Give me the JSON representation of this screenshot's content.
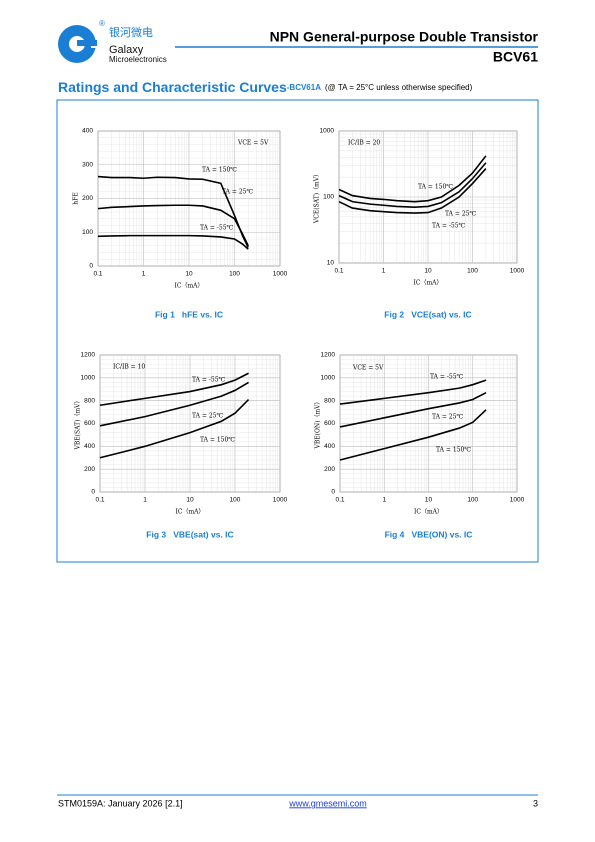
{
  "header": {
    "company_cn": "银河微电",
    "company_en1": "Galaxy",
    "company_en2": "Microelectronics",
    "title": "NPN General-purpose Double Transistor",
    "part": "BCV61"
  },
  "section": {
    "heading": "Ratings and Characteristic Curves",
    "suffix": "-BCV61A",
    "condition": "(@ TA = 25°C unless otherwise specified)"
  },
  "chart_data": [
    {
      "type": "line",
      "caption": "Fig 1   hFE vs. IC",
      "ylabel": "hFE",
      "xlabel": "IC（mA）",
      "annotation": "VCE = 5V",
      "color": "#000000",
      "log_x": true,
      "log_y": false,
      "grid": true,
      "xlim": [
        0.1,
        1000
      ],
      "xticks": [
        0.1,
        1,
        10,
        100,
        1000
      ],
      "ylim": [
        0,
        400
      ],
      "yticks": [
        0,
        100,
        200,
        300,
        400
      ],
      "x": [
        0.1,
        0.2,
        0.5,
        1,
        2,
        5,
        10,
        20,
        50,
        100,
        150,
        200
      ],
      "series": [
        {
          "name": "TA = 150℃",
          "values": [
            265,
            262,
            262,
            260,
            263,
            262,
            258,
            257,
            245,
            150,
            90,
            55
          ]
        },
        {
          "name": "TA = 25℃",
          "values": [
            170,
            174,
            176,
            178,
            179,
            180,
            180,
            178,
            165,
            140,
            95,
            60
          ]
        },
        {
          "name": "TA = -55℃",
          "values": [
            88,
            89,
            90,
            90,
            90,
            90,
            90,
            89,
            86,
            80,
            65,
            50
          ]
        }
      ]
    },
    {
      "type": "line",
      "caption": "Fig 2   VCE(sat) vs. IC",
      "ylabel": "VCE(SAT)（mV）",
      "xlabel": "IC（mA）",
      "annotation": "IC/IB = 20",
      "color": "#000000",
      "log_x": true,
      "log_y": true,
      "grid": true,
      "xlim": [
        0.1,
        1000
      ],
      "xticks": [
        0.1,
        1,
        10,
        100,
        1000
      ],
      "ylim": [
        10,
        1000
      ],
      "yticks": [
        10,
        100,
        1000
      ],
      "x": [
        0.1,
        0.2,
        0.5,
        1,
        2,
        5,
        10,
        20,
        50,
        100,
        200
      ],
      "series": [
        {
          "name": "TA = 150℃",
          "values": [
            130,
            105,
            95,
            92,
            88,
            85,
            88,
            100,
            150,
            230,
            420
          ]
        },
        {
          "name": "TA = 25℃",
          "values": [
            105,
            85,
            78,
            75,
            72,
            70,
            72,
            82,
            120,
            190,
            330
          ]
        },
        {
          "name": "TA = -55℃",
          "values": [
            85,
            68,
            62,
            60,
            58,
            57,
            58,
            68,
            100,
            160,
            270
          ]
        }
      ]
    },
    {
      "type": "line",
      "caption": "Fig 3   VBE(sat) vs. IC",
      "ylabel": "VBE(SAT)（mV）",
      "xlabel": "IC（mA）",
      "annotation": "IC/IB = 10",
      "color": "#000000",
      "log_x": true,
      "log_y": false,
      "grid": true,
      "xlim": [
        0.1,
        1000
      ],
      "xticks": [
        0.1,
        1,
        10,
        100,
        1000
      ],
      "ylim": [
        0,
        1200
      ],
      "yticks": [
        0,
        200,
        400,
        600,
        800,
        1000,
        1200
      ],
      "x": [
        0.1,
        1,
        10,
        50,
        100,
        200
      ],
      "series": [
        {
          "name": "TA = -55℃",
          "values": [
            760,
            820,
            880,
            940,
            980,
            1040
          ]
        },
        {
          "name": "TA = 25℃",
          "values": [
            580,
            660,
            760,
            840,
            890,
            960
          ]
        },
        {
          "name": "TA = 150℃",
          "values": [
            300,
            400,
            520,
            620,
            690,
            810
          ]
        }
      ]
    },
    {
      "type": "line",
      "caption": "Fig 4   VBE(ON) vs. IC",
      "ylabel": "VBE(ON)（mV）",
      "xlabel": "IC（mA）",
      "annotation": "VCE = 5V",
      "color": "#000000",
      "log_x": true,
      "log_y": false,
      "grid": true,
      "xlim": [
        0.1,
        1000
      ],
      "xticks": [
        0.1,
        1,
        10,
        100,
        1000
      ],
      "ylim": [
        0,
        1200
      ],
      "yticks": [
        0,
        200,
        400,
        600,
        800,
        1000,
        1200
      ],
      "x": [
        0.1,
        1,
        10,
        50,
        100,
        200
      ],
      "series": [
        {
          "name": "TA = -55℃",
          "values": [
            770,
            820,
            870,
            910,
            940,
            980
          ]
        },
        {
          "name": "TA = 25℃",
          "values": [
            570,
            650,
            730,
            780,
            810,
            870
          ]
        },
        {
          "name": "TA = 150℃",
          "values": [
            280,
            380,
            480,
            560,
            610,
            720
          ]
        }
      ]
    }
  ],
  "footer": {
    "doc": "STM0159A: January 2026 [2.1]",
    "url": "www.gmesemi.com",
    "page": "3"
  }
}
